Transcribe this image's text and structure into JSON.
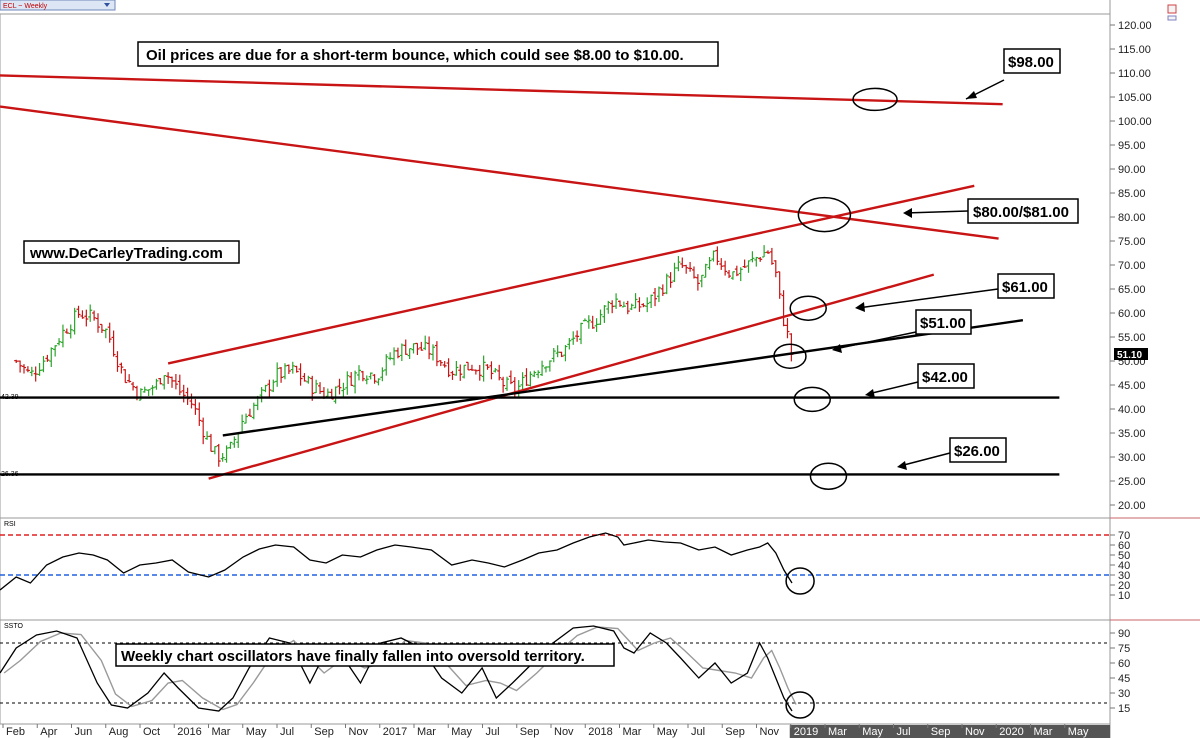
{
  "header": {
    "symbol_label": "ECL ~ Weekly"
  },
  "colors": {
    "up_bar": "#2aa52a",
    "down_bar": "#c81414",
    "trendline_red": "#c81414",
    "trendline_black": "#000000",
    "rsi_overbought_line": "#e02020",
    "rsi_oversold_line": "#2060e0",
    "future_axis_bg": "#555555"
  },
  "annotations": {
    "headline": "Oil prices are due for a short-term bounce, which could see $8.00 to $10.00.",
    "website": "www.DeCarleyTrading.com",
    "oscillator_note": "Weekly chart oscillators have finally fallen into oversold territory.",
    "targets": [
      "$98.00",
      "$80.00/$81.00",
      "$61.00",
      "$51.00",
      "$42.00",
      "$26.00"
    ],
    "level_42": "42.39",
    "level_26": "26.36"
  },
  "chart_data": [
    {
      "type": "candlestick",
      "title": "ECL ~ Weekly",
      "y_ticks": [
        20,
        25,
        30,
        35,
        40,
        45,
        50,
        55,
        60,
        65,
        70,
        75,
        80,
        85,
        90,
        95,
        100,
        105,
        110,
        115,
        120
      ],
      "y_tick_format": "0.00",
      "ylim": [
        17,
        125
      ],
      "last_price": "51.10",
      "x_ticks": [
        "Feb",
        "Apr",
        "Jun",
        "Aug",
        "Oct",
        "2016",
        "Mar",
        "May",
        "Jul",
        "Sep",
        "Nov",
        "2017",
        "Mar",
        "May",
        "Jul",
        "Sep",
        "Nov",
        "2018",
        "Mar",
        "May",
        "Jul",
        "Sep",
        "Nov",
        "2019",
        "Mar",
        "May",
        "Jul",
        "Sep",
        "Nov",
        "2020",
        "Mar",
        "May"
      ],
      "future_from": "2019",
      "horizontal_levels": [
        42.39,
        26.36
      ],
      "price_path": [
        [
          2015.05,
          50
        ],
        [
          2015.12,
          47
        ],
        [
          2015.2,
          51
        ],
        [
          2015.28,
          56
        ],
        [
          2015.36,
          60
        ],
        [
          2015.43,
          59
        ],
        [
          2015.5,
          56
        ],
        [
          2015.58,
          47
        ],
        [
          2015.66,
          43
        ],
        [
          2015.74,
          45
        ],
        [
          2015.78,
          48
        ],
        [
          2015.85,
          44
        ],
        [
          2015.92,
          41
        ],
        [
          2016.0,
          33
        ],
        [
          2016.04,
          30
        ],
        [
          2016.1,
          31
        ],
        [
          2016.17,
          38
        ],
        [
          2016.25,
          42
        ],
        [
          2016.33,
          47
        ],
        [
          2016.42,
          48
        ],
        [
          2016.5,
          45
        ],
        [
          2016.58,
          43
        ],
        [
          2016.66,
          45
        ],
        [
          2016.75,
          48
        ],
        [
          2016.83,
          47
        ],
        [
          2016.92,
          52
        ],
        [
          2017.0,
          53
        ],
        [
          2017.1,
          52
        ],
        [
          2017.2,
          48
        ],
        [
          2017.3,
          49
        ],
        [
          2017.38,
          48
        ],
        [
          2017.46,
          45
        ],
        [
          2017.52,
          44
        ],
        [
          2017.58,
          47
        ],
        [
          2017.66,
          50
        ],
        [
          2017.75,
          52
        ],
        [
          2017.83,
          56
        ],
        [
          2017.92,
          59
        ],
        [
          2018.0,
          63
        ],
        [
          2018.08,
          61
        ],
        [
          2018.17,
          62
        ],
        [
          2018.25,
          66
        ],
        [
          2018.33,
          70
        ],
        [
          2018.42,
          66
        ],
        [
          2018.5,
          72
        ],
        [
          2018.58,
          68
        ],
        [
          2018.66,
          70
        ],
        [
          2018.72,
          72
        ],
        [
          2018.76,
          73
        ],
        [
          2018.8,
          68
        ],
        [
          2018.83,
          60
        ],
        [
          2018.86,
          55
        ],
        [
          2018.88,
          51
        ]
      ],
      "trendlines": [
        {
          "color": "red",
          "points": [
            [
              2014.97,
              109.5
            ],
            [
              2019.92,
              103.5
            ]
          ]
        },
        {
          "color": "red",
          "points": [
            [
              2014.97,
              103
            ],
            [
              2019.9,
              75.5
            ]
          ]
        },
        {
          "color": "red",
          "points": [
            [
              2015.8,
              49.5
            ],
            [
              2019.78,
              86.5
            ]
          ]
        },
        {
          "color": "red",
          "points": [
            [
              2016.0,
              25.5
            ],
            [
              2019.58,
              68
            ]
          ]
        },
        {
          "color": "black",
          "points": [
            [
              2016.07,
              34.5
            ],
            [
              2020.02,
              58.5
            ]
          ]
        },
        {
          "color": "black",
          "points": [
            [
              2014.97,
              42.39
            ],
            [
              2020.2,
              42.39
            ]
          ]
        },
        {
          "color": "black",
          "points": [
            [
              2014.97,
              26.36
            ],
            [
              2020.2,
              26.36
            ]
          ]
        }
      ],
      "circled_targets": [
        {
          "x": 2019.29,
          "y": 104.5
        },
        {
          "x": 2019.04,
          "y": 80.5
        },
        {
          "x": 2018.96,
          "y": 61
        },
        {
          "x": 2018.87,
          "y": 51
        },
        {
          "x": 2018.98,
          "y": 42
        },
        {
          "x": 2019.06,
          "y": 26
        }
      ]
    },
    {
      "type": "line",
      "title": "RSI",
      "y_ticks": [
        10,
        20,
        30,
        40,
        50,
        60,
        70
      ],
      "ylim": [
        2,
        76
      ],
      "reference_lines": [
        70,
        30
      ],
      "series": [
        {
          "values": [
            [
              2014.97,
              15
            ],
            [
              2015.05,
              28
            ],
            [
              2015.12,
              22
            ],
            [
              2015.2,
              40
            ],
            [
              2015.28,
              48
            ],
            [
              2015.36,
              52
            ],
            [
              2015.43,
              50
            ],
            [
              2015.5,
              45
            ],
            [
              2015.58,
              32
            ],
            [
              2015.66,
              40
            ],
            [
              2015.74,
              42
            ],
            [
              2015.82,
              45
            ],
            [
              2015.9,
              33
            ],
            [
              2016.0,
              28
            ],
            [
              2016.08,
              35
            ],
            [
              2016.17,
              48
            ],
            [
              2016.25,
              56
            ],
            [
              2016.33,
              60
            ],
            [
              2016.42,
              58
            ],
            [
              2016.5,
              45
            ],
            [
              2016.58,
              42
            ],
            [
              2016.66,
              50
            ],
            [
              2016.75,
              48
            ],
            [
              2016.83,
              55
            ],
            [
              2016.92,
              60
            ],
            [
              2017.0,
              58
            ],
            [
              2017.1,
              55
            ],
            [
              2017.2,
              40
            ],
            [
              2017.3,
              45
            ],
            [
              2017.38,
              42
            ],
            [
              2017.46,
              38
            ],
            [
              2017.55,
              45
            ],
            [
              2017.63,
              52
            ],
            [
              2017.72,
              55
            ],
            [
              2017.8,
              62
            ],
            [
              2017.88,
              68
            ],
            [
              2017.96,
              72
            ],
            [
              2018.02,
              68
            ],
            [
              2018.05,
              60
            ],
            [
              2018.1,
              62
            ],
            [
              2018.17,
              65
            ],
            [
              2018.25,
              63
            ],
            [
              2018.33,
              62
            ],
            [
              2018.42,
              55
            ],
            [
              2018.5,
              58
            ],
            [
              2018.58,
              50
            ],
            [
              2018.66,
              55
            ],
            [
              2018.72,
              58
            ],
            [
              2018.76,
              62
            ],
            [
              2018.8,
              52
            ],
            [
              2018.84,
              35
            ],
            [
              2018.88,
              22
            ]
          ]
        }
      ]
    },
    {
      "type": "line",
      "title": "SSTO",
      "y_ticks": [
        15,
        30,
        45,
        60,
        75,
        90
      ],
      "ylim": [
        5,
        98
      ],
      "reference_lines": [
        80,
        20
      ],
      "series": [
        {
          "values": [
            [
              2014.97,
              50
            ],
            [
              2015.05,
              75
            ],
            [
              2015.15,
              88
            ],
            [
              2015.25,
              92
            ],
            [
              2015.35,
              85
            ],
            [
              2015.45,
              40
            ],
            [
              2015.52,
              18
            ],
            [
              2015.6,
              15
            ],
            [
              2015.7,
              30
            ],
            [
              2015.78,
              50
            ],
            [
              2015.85,
              35
            ],
            [
              2015.95,
              15
            ],
            [
              2016.05,
              12
            ],
            [
              2016.12,
              25
            ],
            [
              2016.2,
              55
            ],
            [
              2016.3,
              85
            ],
            [
              2016.4,
              80
            ],
            [
              2016.5,
              40
            ],
            [
              2016.55,
              60
            ],
            [
              2016.65,
              70
            ],
            [
              2016.75,
              40
            ],
            [
              2016.85,
              80
            ],
            [
              2016.95,
              85
            ],
            [
              2017.05,
              75
            ],
            [
              2017.15,
              45
            ],
            [
              2017.25,
              30
            ],
            [
              2017.35,
              55
            ],
            [
              2017.42,
              25
            ],
            [
              2017.5,
              40
            ],
            [
              2017.6,
              60
            ],
            [
              2017.7,
              80
            ],
            [
              2017.8,
              95
            ],
            [
              2017.9,
              97
            ],
            [
              2018.0,
              92
            ],
            [
              2018.05,
              75
            ],
            [
              2018.1,
              70
            ],
            [
              2018.18,
              90
            ],
            [
              2018.26,
              80
            ],
            [
              2018.33,
              65
            ],
            [
              2018.42,
              45
            ],
            [
              2018.5,
              60
            ],
            [
              2018.58,
              40
            ],
            [
              2018.66,
              50
            ],
            [
              2018.72,
              80
            ],
            [
              2018.76,
              65
            ],
            [
              2018.8,
              45
            ],
            [
              2018.84,
              25
            ],
            [
              2018.88,
              12
            ]
          ]
        }
      ]
    }
  ]
}
